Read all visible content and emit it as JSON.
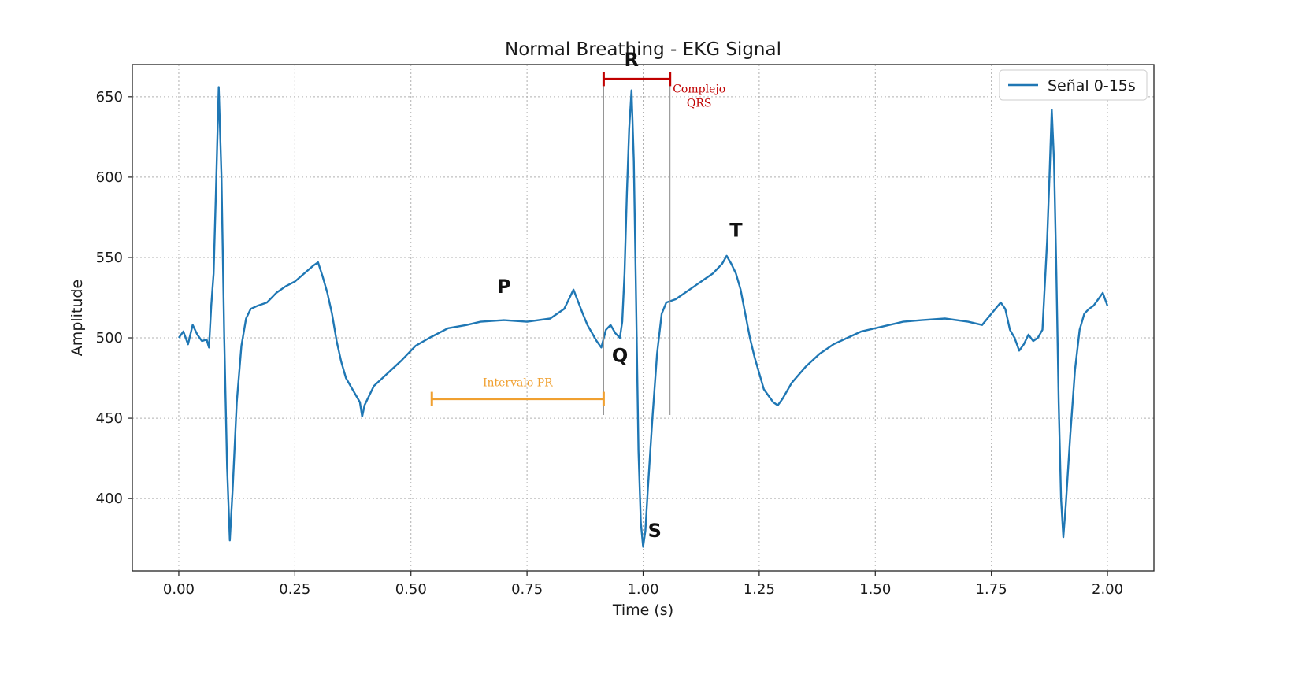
{
  "chart_data": {
    "type": "line",
    "title": "Normal Breathing - EKG Signal",
    "xlabel": "Time (s)",
    "ylabel": "Amplitude",
    "xlim": [
      -0.1,
      2.1
    ],
    "ylim": [
      355,
      670
    ],
    "xticks": [
      0.0,
      0.25,
      0.5,
      0.75,
      1.0,
      1.25,
      1.5,
      1.75,
      2.0
    ],
    "xtick_labels": [
      "0.00",
      "0.25",
      "0.50",
      "0.75",
      "1.00",
      "1.25",
      "1.50",
      "1.75",
      "2.00"
    ],
    "yticks": [
      400,
      450,
      500,
      550,
      600,
      650
    ],
    "ytick_labels": [
      "400",
      "450",
      "500",
      "550",
      "600",
      "650"
    ],
    "grid": true,
    "legend": {
      "position": "top-right",
      "entries": [
        "Señal 0-15s"
      ]
    },
    "series_color": "#1f77b4",
    "series": [
      {
        "name": "Señal 0-15s",
        "points": [
          [
            0.0,
            500
          ],
          [
            0.01,
            504
          ],
          [
            0.02,
            496
          ],
          [
            0.03,
            508
          ],
          [
            0.04,
            502
          ],
          [
            0.05,
            498
          ],
          [
            0.06,
            499
          ],
          [
            0.065,
            494
          ],
          [
            0.07,
            520
          ],
          [
            0.075,
            540
          ],
          [
            0.08,
            590
          ],
          [
            0.086,
            656
          ],
          [
            0.092,
            600
          ],
          [
            0.098,
            500
          ],
          [
            0.104,
            420
          ],
          [
            0.11,
            374
          ],
          [
            0.116,
            405
          ],
          [
            0.125,
            460
          ],
          [
            0.135,
            495
          ],
          [
            0.145,
            512
          ],
          [
            0.155,
            518
          ],
          [
            0.17,
            520
          ],
          [
            0.19,
            522
          ],
          [
            0.21,
            528
          ],
          [
            0.23,
            532
          ],
          [
            0.25,
            535
          ],
          [
            0.27,
            540
          ],
          [
            0.29,
            545
          ],
          [
            0.3,
            547
          ],
          [
            0.31,
            538
          ],
          [
            0.32,
            528
          ],
          [
            0.33,
            515
          ],
          [
            0.34,
            498
          ],
          [
            0.35,
            485
          ],
          [
            0.36,
            475
          ],
          [
            0.37,
            470
          ],
          [
            0.38,
            465
          ],
          [
            0.39,
            460
          ],
          [
            0.395,
            451
          ],
          [
            0.4,
            458
          ],
          [
            0.42,
            470
          ],
          [
            0.45,
            478
          ],
          [
            0.48,
            486
          ],
          [
            0.51,
            495
          ],
          [
            0.54,
            500
          ],
          [
            0.58,
            506
          ],
          [
            0.62,
            508
          ],
          [
            0.65,
            510
          ],
          [
            0.7,
            511
          ],
          [
            0.75,
            510
          ],
          [
            0.8,
            512
          ],
          [
            0.83,
            518
          ],
          [
            0.85,
            530
          ],
          [
            0.87,
            515
          ],
          [
            0.88,
            508
          ],
          [
            0.9,
            498
          ],
          [
            0.91,
            494
          ],
          [
            0.92,
            505
          ],
          [
            0.93,
            508
          ],
          [
            0.94,
            503
          ],
          [
            0.95,
            500
          ],
          [
            0.955,
            510
          ],
          [
            0.96,
            540
          ],
          [
            0.965,
            590
          ],
          [
            0.97,
            630
          ],
          [
            0.975,
            654
          ],
          [
            0.98,
            610
          ],
          [
            0.985,
            520
          ],
          [
            0.99,
            430
          ],
          [
            0.995,
            385
          ],
          [
            1.0,
            370
          ],
          [
            1.005,
            380
          ],
          [
            1.01,
            405
          ],
          [
            1.02,
            450
          ],
          [
            1.03,
            490
          ],
          [
            1.04,
            515
          ],
          [
            1.05,
            522
          ],
          [
            1.07,
            524
          ],
          [
            1.09,
            528
          ],
          [
            1.11,
            532
          ],
          [
            1.13,
            536
          ],
          [
            1.15,
            540
          ],
          [
            1.17,
            546
          ],
          [
            1.18,
            551
          ],
          [
            1.19,
            546
          ],
          [
            1.2,
            540
          ],
          [
            1.21,
            530
          ],
          [
            1.22,
            515
          ],
          [
            1.23,
            500
          ],
          [
            1.24,
            488
          ],
          [
            1.25,
            478
          ],
          [
            1.26,
            468
          ],
          [
            1.27,
            464
          ],
          [
            1.28,
            460
          ],
          [
            1.29,
            458
          ],
          [
            1.3,
            462
          ],
          [
            1.32,
            472
          ],
          [
            1.35,
            482
          ],
          [
            1.38,
            490
          ],
          [
            1.41,
            496
          ],
          [
            1.44,
            500
          ],
          [
            1.47,
            504
          ],
          [
            1.5,
            506
          ],
          [
            1.53,
            508
          ],
          [
            1.56,
            510
          ],
          [
            1.6,
            511
          ],
          [
            1.65,
            512
          ],
          [
            1.7,
            510
          ],
          [
            1.73,
            508
          ],
          [
            1.75,
            515
          ],
          [
            1.77,
            522
          ],
          [
            1.78,
            518
          ],
          [
            1.79,
            505
          ],
          [
            1.8,
            500
          ],
          [
            1.81,
            492
          ],
          [
            1.82,
            496
          ],
          [
            1.83,
            502
          ],
          [
            1.84,
            498
          ],
          [
            1.85,
            500
          ],
          [
            1.86,
            505
          ],
          [
            1.87,
            560
          ],
          [
            1.875,
            600
          ],
          [
            1.88,
            642
          ],
          [
            1.885,
            610
          ],
          [
            1.89,
            540
          ],
          [
            1.895,
            460
          ],
          [
            1.9,
            400
          ],
          [
            1.905,
            376
          ],
          [
            1.91,
            395
          ],
          [
            1.92,
            440
          ],
          [
            1.93,
            480
          ],
          [
            1.94,
            505
          ],
          [
            1.95,
            515
          ],
          [
            1.96,
            518
          ],
          [
            1.97,
            520
          ],
          [
            1.98,
            524
          ],
          [
            1.99,
            528
          ],
          [
            2.0,
            520
          ]
        ]
      }
    ],
    "annotations": {
      "wave_labels": [
        {
          "text": "P",
          "x": 0.7,
          "y": 528
        },
        {
          "text": "Q",
          "x": 0.95,
          "y": 485
        },
        {
          "text": "R",
          "x": 0.975,
          "y": 669
        },
        {
          "text": "S",
          "x": 1.025,
          "y": 376
        },
        {
          "text": "T",
          "x": 1.2,
          "y": 563
        }
      ],
      "qrs": {
        "label_line1": "Complejo",
        "label_line2": "QRS",
        "x_start": 0.915,
        "x_end": 1.058,
        "y": 661,
        "color": "#c00000"
      },
      "pr": {
        "label": "Intervalo PR",
        "x_start": 0.545,
        "x_end": 0.915,
        "y": 462,
        "color": "#f0a030"
      },
      "guides": [
        {
          "x": 0.915,
          "y_from": 661,
          "y_to": 452
        },
        {
          "x": 1.058,
          "y_from": 661,
          "y_to": 452
        }
      ]
    }
  }
}
